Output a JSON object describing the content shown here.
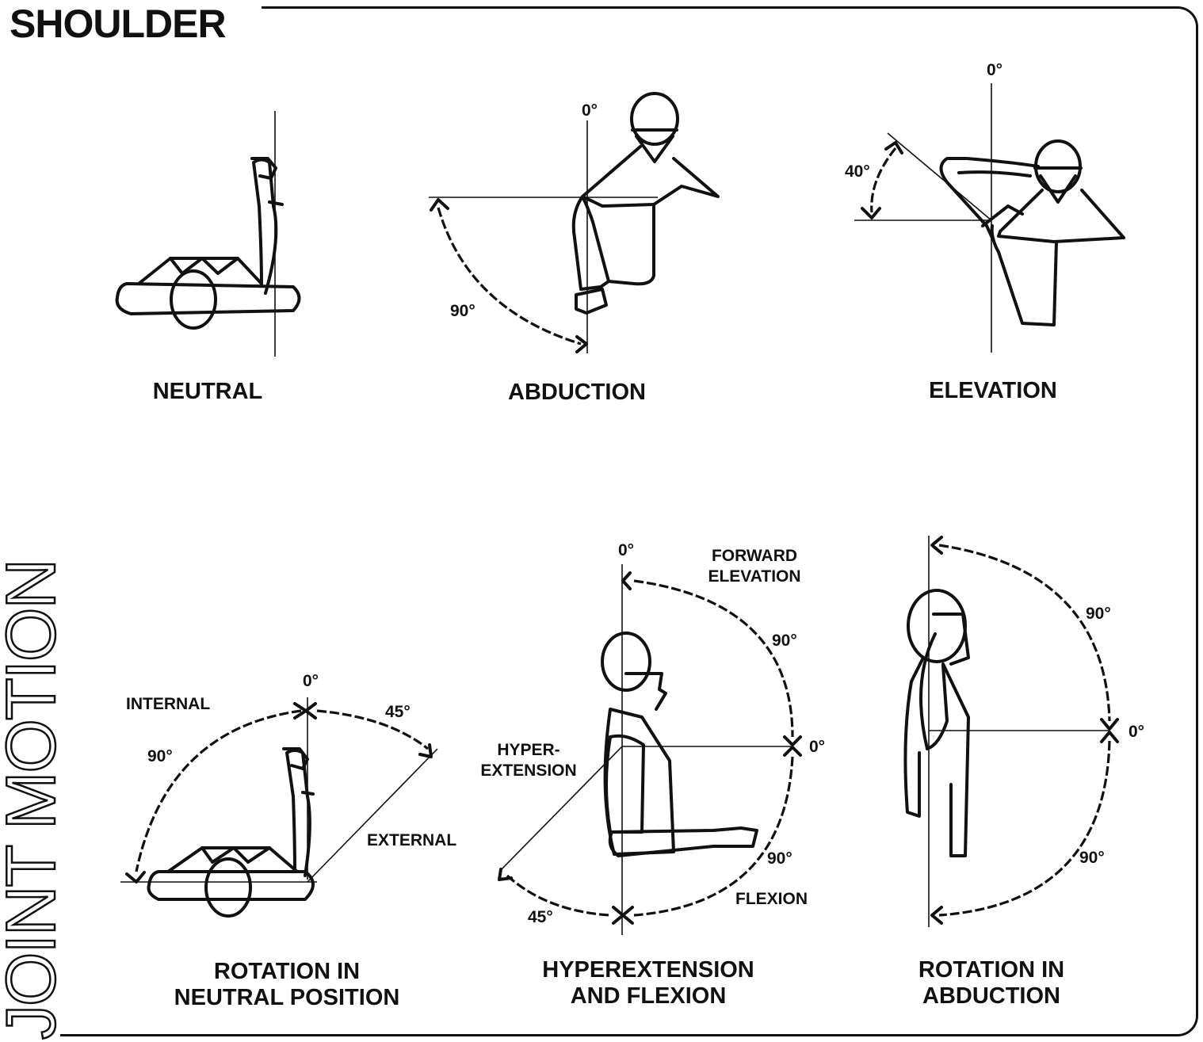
{
  "heading": "SHOULDER",
  "side_title": "JOINT MOTION",
  "panels": {
    "neutral": {
      "caption": "NEUTRAL"
    },
    "abduction": {
      "caption": "ABDUCTION",
      "zero": "0°",
      "angle": "90°"
    },
    "elevation": {
      "caption": "ELEVATION",
      "zero": "0°",
      "angle": "40°"
    },
    "rotation_neutral": {
      "caption_line1": "ROTATION IN",
      "caption_line2": "NEUTRAL POSITION",
      "zero": "0°",
      "internal": "INTERNAL",
      "external": "EXTERNAL",
      "internal_angle": "90°",
      "external_angle": "45°"
    },
    "hyperextension": {
      "caption_line1": "HYPEREXTENSION",
      "caption_line2": "AND FLEXION",
      "zero_top": "0°",
      "zero_side": "0°",
      "forward_line1": "FORWARD",
      "forward_line2": "ELEVATION",
      "upper_angle": "90°",
      "lower_angle": "90°",
      "hyper_line1": "HYPER-",
      "hyper_line2": "EXTENSION",
      "flexion": "FLEXION",
      "hyper_angle": "45°"
    },
    "rotation_abduction": {
      "caption_line1": "ROTATION IN",
      "caption_line2": "ABDUCTION",
      "zero": "0°",
      "upper_angle": "90°",
      "lower_angle": "90°"
    }
  }
}
